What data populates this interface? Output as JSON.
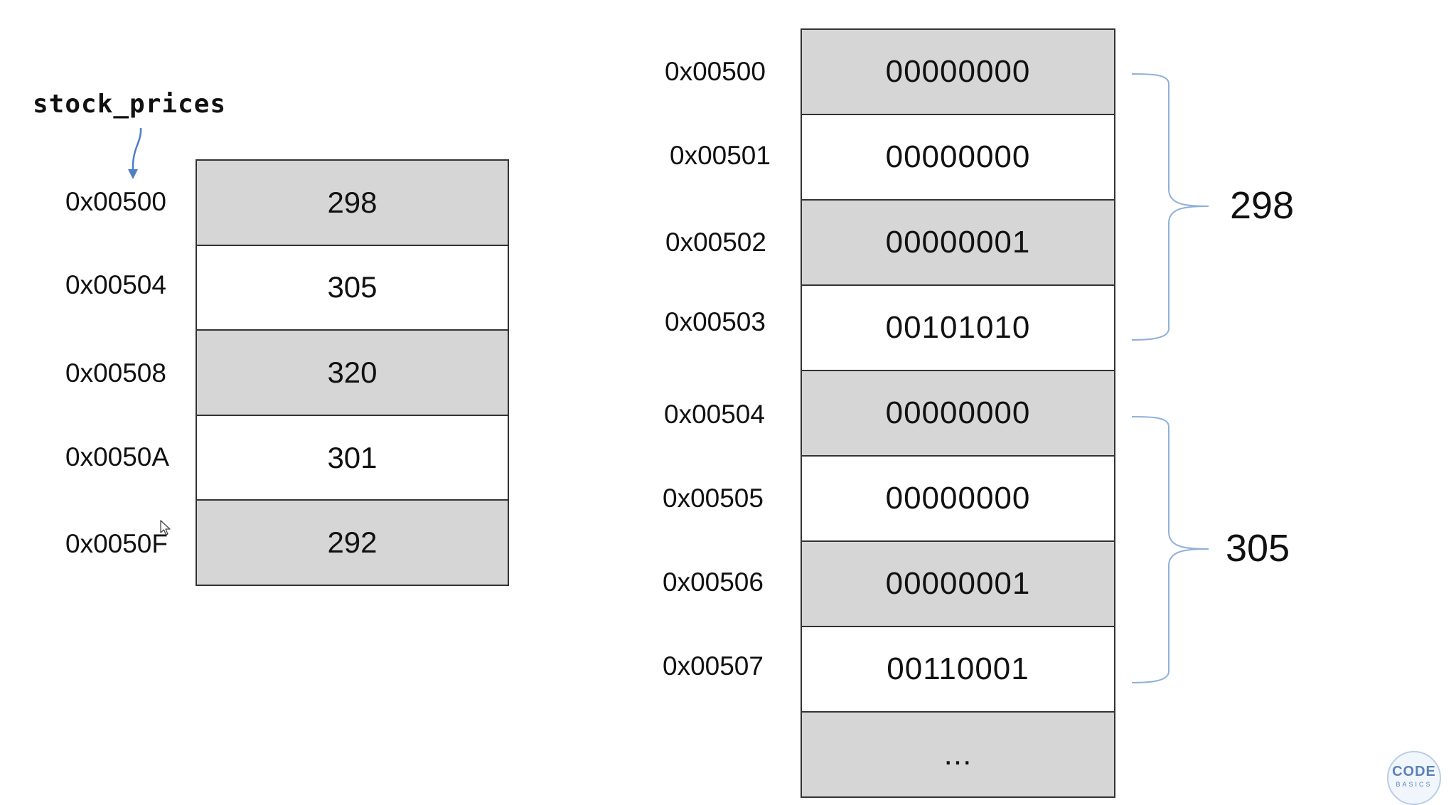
{
  "left_array": {
    "variable": "stock_prices",
    "addresses": [
      "0x00500",
      "0x00504",
      "0x00508",
      "0x0050A",
      "0x0050F"
    ],
    "values": [
      "298",
      "305",
      "320",
      "301",
      "292"
    ]
  },
  "memory": {
    "addresses": [
      "0x00500",
      "0x00501",
      "0x00502",
      "0x00503",
      "0x00504",
      "0x00505",
      "0x00506",
      "0x00507"
    ],
    "bytes": [
      "00000000",
      "00000000",
      "00000001",
      "00101010",
      "00000000",
      "00000000",
      "00000001",
      "00110001"
    ],
    "ellipsis": "...",
    "groups": [
      {
        "value": "298"
      },
      {
        "value": "305"
      }
    ]
  },
  "logo": {
    "top": "CODE",
    "bottom": "BASICS"
  },
  "colors": {
    "shaded_cell": "#d6d6d6",
    "pointer_arrow": "#4f7fc4",
    "brace": "#8fb0da"
  }
}
